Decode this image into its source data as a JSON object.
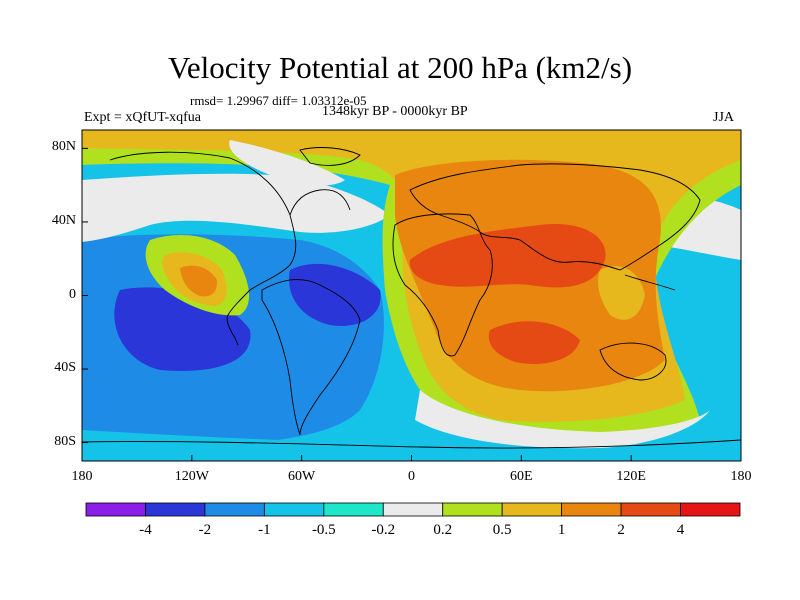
{
  "title": "Velocity Potential at 200 hPa (km2/s)",
  "stats": "rmsd= 1.29967 diff= 1.03312e-05",
  "experiment": "Expt = xQfUT-xqfua",
  "period": "1348kyr BP - 0000kyr BP",
  "season": "JJA",
  "map": {
    "x_ticks": [
      "180",
      "120W",
      "60W",
      "0",
      "60E",
      "120E",
      "180"
    ],
    "y_ticks": [
      "80N",
      "40N",
      "0",
      "40S",
      "80S"
    ],
    "lon_range": [
      -180,
      180
    ],
    "lat_range": [
      -90,
      90
    ]
  },
  "colorbar": {
    "labels": [
      "-4",
      "-2",
      "-1",
      "-0.5",
      "-0.2",
      "0.2",
      "0.5",
      "1",
      "2",
      "4"
    ],
    "colors": [
      "#8b1ee8",
      "#2b36d9",
      "#1e8ce6",
      "#16c3e8",
      "#1ee6c8",
      "#ebebeb",
      "#b0e01e",
      "#e6b81e",
      "#e8860f",
      "#e64a14",
      "#e61414"
    ]
  }
}
